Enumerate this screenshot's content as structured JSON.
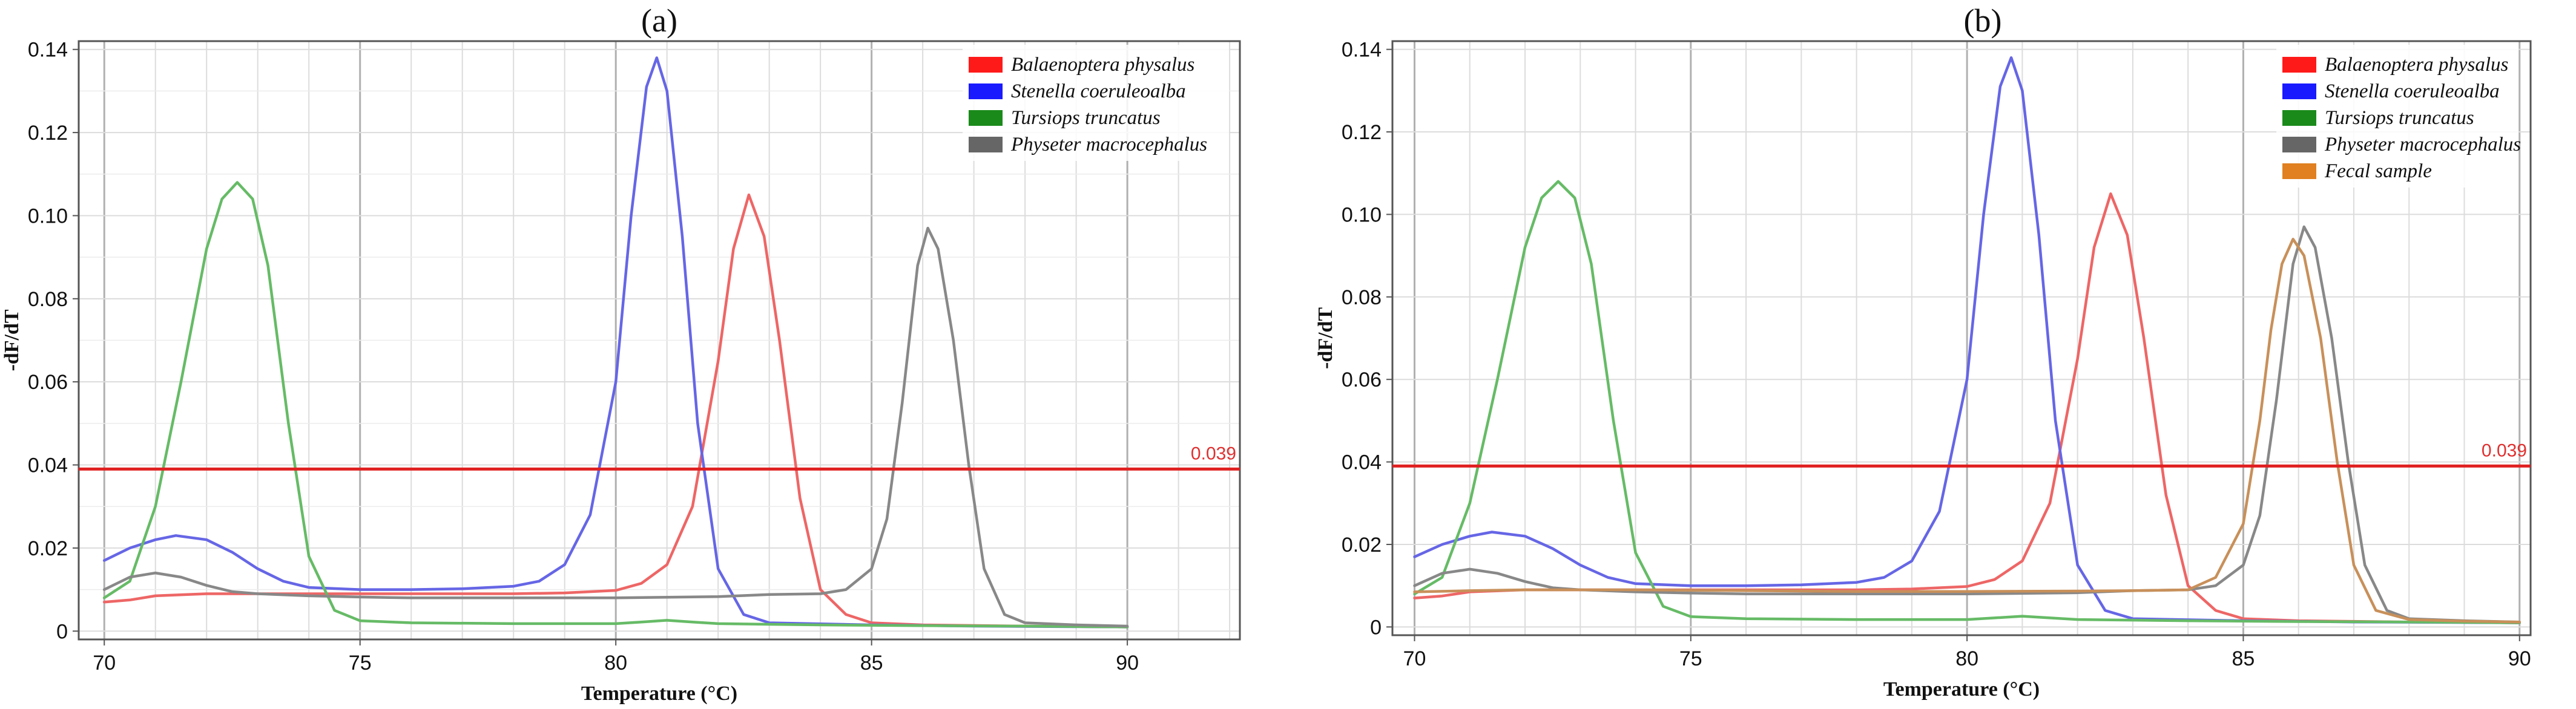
{
  "chart_data": [
    {
      "type": "line",
      "panel": "(a)",
      "title": "(a)",
      "xlabel": "Temperature (°C)",
      "ylabel": "-dF/dT",
      "xlim": [
        69.5,
        92.2
      ],
      "ylim": [
        -0.002,
        0.142
      ],
      "xticks": [
        "70",
        "75",
        "80",
        "85",
        "90"
      ],
      "yticks": [
        "0",
        "0.02",
        "0.04",
        "0.06",
        "0.08",
        "0.10",
        "0.12",
        "0.14"
      ],
      "grid": true,
      "legend_position": "top-right",
      "threshold": {
        "value": 0.039,
        "label": "0.039",
        "color": "#e02020"
      },
      "series": [
        {
          "name": "Balaenoptera physalus",
          "legend_color": "#ff1a1a",
          "line_color": "#ee6666",
          "x": [
            70,
            70.5,
            71,
            72,
            73,
            74,
            75,
            76,
            77,
            78,
            79,
            80,
            80.5,
            81,
            81.5,
            82,
            82.3,
            82.6,
            82.9,
            83.2,
            83.6,
            84,
            84.5,
            85,
            86,
            88,
            90
          ],
          "y": [
            0.007,
            0.0075,
            0.0085,
            0.009,
            0.009,
            0.009,
            0.009,
            0.009,
            0.009,
            0.009,
            0.0092,
            0.0098,
            0.0115,
            0.016,
            0.03,
            0.065,
            0.092,
            0.105,
            0.095,
            0.07,
            0.032,
            0.01,
            0.004,
            0.002,
            0.0015,
            0.0012,
            0.001
          ]
        },
        {
          "name": "Stenella coeruleoalba",
          "legend_color": "#1a1aff",
          "line_color": "#6666e6",
          "x": [
            70,
            70.5,
            71,
            71.4,
            72,
            72.5,
            73,
            73.5,
            74,
            75,
            76,
            77,
            78,
            78.5,
            79,
            79.5,
            80,
            80.3,
            80.6,
            80.8,
            81,
            81.3,
            81.6,
            82,
            82.5,
            83,
            85,
            87,
            90
          ],
          "y": [
            0.017,
            0.02,
            0.022,
            0.023,
            0.022,
            0.019,
            0.015,
            0.012,
            0.0105,
            0.01,
            0.01,
            0.0102,
            0.0108,
            0.012,
            0.016,
            0.028,
            0.06,
            0.1,
            0.131,
            0.138,
            0.13,
            0.095,
            0.05,
            0.015,
            0.004,
            0.002,
            0.0015,
            0.0012,
            0.001
          ]
        },
        {
          "name": "Tursiops truncatus",
          "legend_color": "#1a8a1a",
          "line_color": "#66bb66",
          "x": [
            70,
            70.5,
            71,
            71.5,
            72,
            72.3,
            72.6,
            72.9,
            73.2,
            73.6,
            74,
            74.5,
            75,
            76,
            78,
            80,
            80.5,
            81,
            81.5,
            82,
            84,
            86,
            88,
            90
          ],
          "y": [
            0.008,
            0.012,
            0.03,
            0.06,
            0.092,
            0.104,
            0.108,
            0.104,
            0.088,
            0.05,
            0.018,
            0.005,
            0.0025,
            0.002,
            0.0018,
            0.0018,
            0.0022,
            0.0026,
            0.0022,
            0.0018,
            0.0015,
            0.0013,
            0.0012,
            0.001
          ]
        },
        {
          "name": "Physeter macrocephalus",
          "legend_color": "#666666",
          "line_color": "#888888",
          "x": [
            70,
            70.5,
            71,
            71.5,
            72,
            72.5,
            73,
            74,
            75,
            76,
            78,
            80,
            82,
            83,
            84,
            84.5,
            85,
            85.3,
            85.6,
            85.9,
            86.1,
            86.3,
            86.6,
            86.9,
            87.2,
            87.6,
            88,
            89,
            90
          ],
          "y": [
            0.01,
            0.013,
            0.014,
            0.013,
            0.011,
            0.0095,
            0.009,
            0.0085,
            0.0082,
            0.008,
            0.008,
            0.008,
            0.0083,
            0.0088,
            0.009,
            0.01,
            0.015,
            0.027,
            0.055,
            0.088,
            0.097,
            0.092,
            0.07,
            0.04,
            0.015,
            0.004,
            0.002,
            0.0015,
            0.0012
          ]
        }
      ]
    },
    {
      "type": "line",
      "panel": "(b)",
      "title": "(b)",
      "xlabel": "Temperature (°C)",
      "ylabel": "-dF/dT",
      "xlim": [
        69.6,
        90.2
      ],
      "ylim": [
        -0.002,
        0.142
      ],
      "xticks": [
        "70",
        "75",
        "80",
        "85",
        "90"
      ],
      "yticks": [
        "0",
        "0.02",
        "0.04",
        "0.06",
        "0.08",
        "0.10",
        "0.12",
        "0.14"
      ],
      "grid": true,
      "legend_position": "top-right",
      "threshold": {
        "value": 0.039,
        "label": "0.039",
        "color": "#e02020"
      },
      "series": [
        {
          "name": "Balaenoptera physalus",
          "legend_color": "#ff1a1a",
          "line_color": "#ee6666",
          "x": [
            70,
            70.5,
            71,
            72,
            73,
            74,
            75,
            76,
            77,
            78,
            79,
            80,
            80.5,
            81,
            81.5,
            82,
            82.3,
            82.6,
            82.9,
            83.2,
            83.6,
            84,
            84.5,
            85,
            86,
            88,
            90
          ],
          "y": [
            0.007,
            0.0075,
            0.0085,
            0.009,
            0.009,
            0.009,
            0.009,
            0.009,
            0.009,
            0.009,
            0.0092,
            0.0098,
            0.0115,
            0.016,
            0.03,
            0.065,
            0.092,
            0.105,
            0.095,
            0.07,
            0.032,
            0.01,
            0.004,
            0.002,
            0.0015,
            0.0012,
            0.001
          ]
        },
        {
          "name": "Stenella coeruleoalba",
          "legend_color": "#1a1aff",
          "line_color": "#6666e6",
          "x": [
            70,
            70.5,
            71,
            71.4,
            72,
            72.5,
            73,
            73.5,
            74,
            75,
            76,
            77,
            78,
            78.5,
            79,
            79.5,
            80,
            80.3,
            80.6,
            80.8,
            81,
            81.3,
            81.6,
            82,
            82.5,
            83,
            85,
            87,
            90
          ],
          "y": [
            0.017,
            0.02,
            0.022,
            0.023,
            0.022,
            0.019,
            0.015,
            0.012,
            0.0105,
            0.01,
            0.01,
            0.0102,
            0.0108,
            0.012,
            0.016,
            0.028,
            0.06,
            0.1,
            0.131,
            0.138,
            0.13,
            0.095,
            0.05,
            0.015,
            0.004,
            0.002,
            0.0015,
            0.0012,
            0.001
          ]
        },
        {
          "name": "Tursiops truncatus",
          "legend_color": "#1a8a1a",
          "line_color": "#66bb66",
          "x": [
            70,
            70.5,
            71,
            71.5,
            72,
            72.3,
            72.6,
            72.9,
            73.2,
            73.6,
            74,
            74.5,
            75,
            76,
            78,
            80,
            80.5,
            81,
            81.5,
            82,
            84,
            86,
            88,
            90
          ],
          "y": [
            0.008,
            0.012,
            0.03,
            0.06,
            0.092,
            0.104,
            0.108,
            0.104,
            0.088,
            0.05,
            0.018,
            0.005,
            0.0025,
            0.002,
            0.0018,
            0.0018,
            0.0022,
            0.0026,
            0.0022,
            0.0018,
            0.0015,
            0.0013,
            0.0012,
            0.001
          ]
        },
        {
          "name": "Physeter macrocephalus",
          "legend_color": "#666666",
          "line_color": "#888888",
          "x": [
            70,
            70.5,
            71,
            71.5,
            72,
            72.5,
            73,
            74,
            75,
            76,
            78,
            80,
            82,
            83,
            84,
            84.5,
            85,
            85.3,
            85.6,
            85.9,
            86.1,
            86.3,
            86.6,
            86.9,
            87.2,
            87.6,
            88,
            89,
            90
          ],
          "y": [
            0.01,
            0.013,
            0.014,
            0.013,
            0.011,
            0.0095,
            0.009,
            0.0085,
            0.0082,
            0.008,
            0.008,
            0.008,
            0.0083,
            0.0088,
            0.009,
            0.01,
            0.015,
            0.027,
            0.055,
            0.088,
            0.097,
            0.092,
            0.07,
            0.04,
            0.015,
            0.004,
            0.002,
            0.0015,
            0.0012
          ]
        },
        {
          "name": "Fecal sample",
          "legend_color": "#e08020",
          "line_color": "#c8905a",
          "x": [
            70,
            71,
            72,
            74,
            76,
            78,
            80,
            82,
            83,
            84,
            84.5,
            85,
            85.3,
            85.5,
            85.7,
            85.9,
            86.1,
            86.4,
            86.7,
            87,
            87.4,
            88,
            89,
            90
          ],
          "y": [
            0.0085,
            0.0088,
            0.009,
            0.009,
            0.0088,
            0.0086,
            0.0086,
            0.0087,
            0.0088,
            0.009,
            0.012,
            0.025,
            0.05,
            0.072,
            0.088,
            0.094,
            0.09,
            0.07,
            0.04,
            0.015,
            0.004,
            0.0018,
            0.0014,
            0.0012
          ]
        }
      ]
    }
  ]
}
